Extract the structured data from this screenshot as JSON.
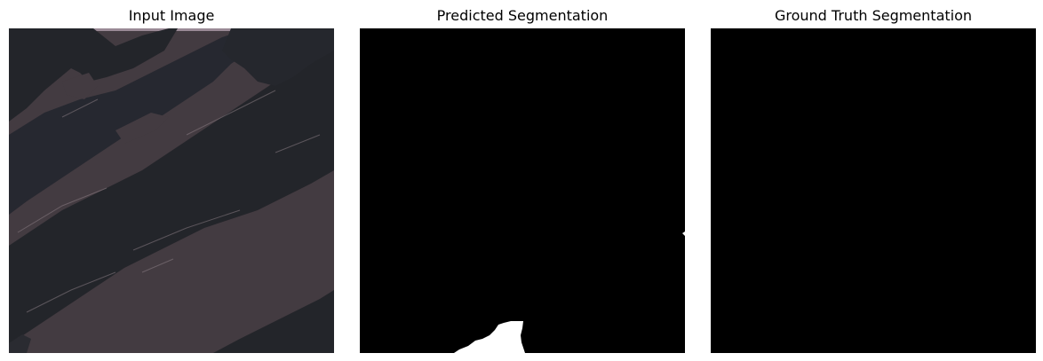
{
  "figure": {
    "panels": [
      {
        "title": "Input Image"
      },
      {
        "title": "Predicted Segmentation"
      },
      {
        "title": "Ground Truth Segmentation"
      }
    ]
  },
  "colors": {
    "background": "#ffffff",
    "input_base": "#433b41",
    "input_dark": "#23252a",
    "input_highlight": "#8a7d84",
    "input_top_band": "#9a8a96",
    "mask_background": "#000000",
    "mask_foreground": "#ffffff"
  }
}
